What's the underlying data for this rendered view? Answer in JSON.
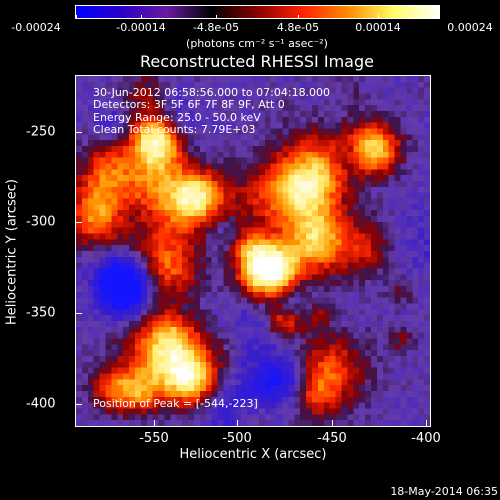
{
  "colorbar": {
    "ticks": [
      "-0.00024",
      "-0.00014",
      "-4.8e-05",
      "4.8e-05",
      "0.00014",
      "0.00024"
    ],
    "units": "(photons cm⁻² s⁻¹ asec⁻²)",
    "gradient_colors": [
      "#0000ff",
      "#2a00c8",
      "#6a1aa0",
      "#000000",
      "#8b0000",
      "#ff2200",
      "#ff8c00",
      "#ffff66",
      "#ffffff"
    ]
  },
  "title": "Reconstructed RHESSI Image",
  "annotations": {
    "time_range": "30-Jun-2012 06:58:56.000 to 07:04:18.000",
    "detectors": "Detectors: 3F 5F 6F 7F 8F 9F, Att 0",
    "energy": "Energy Range: 25.0 - 50.0 keV",
    "clean": "Clean     Total counts: 7.79E+03",
    "peak": "Position of Peak = [-544,-223]"
  },
  "axes": {
    "xlabel": "Heliocentric X (arcsec)",
    "ylabel": "Heliocentric Y (arcsec)",
    "x_ticks": [
      "-550",
      "-500",
      "-450",
      "-400"
    ],
    "y_ticks": [
      "-250",
      "-300",
      "-350",
      "-400"
    ]
  },
  "footer": "18-May-2014 06:35"
}
